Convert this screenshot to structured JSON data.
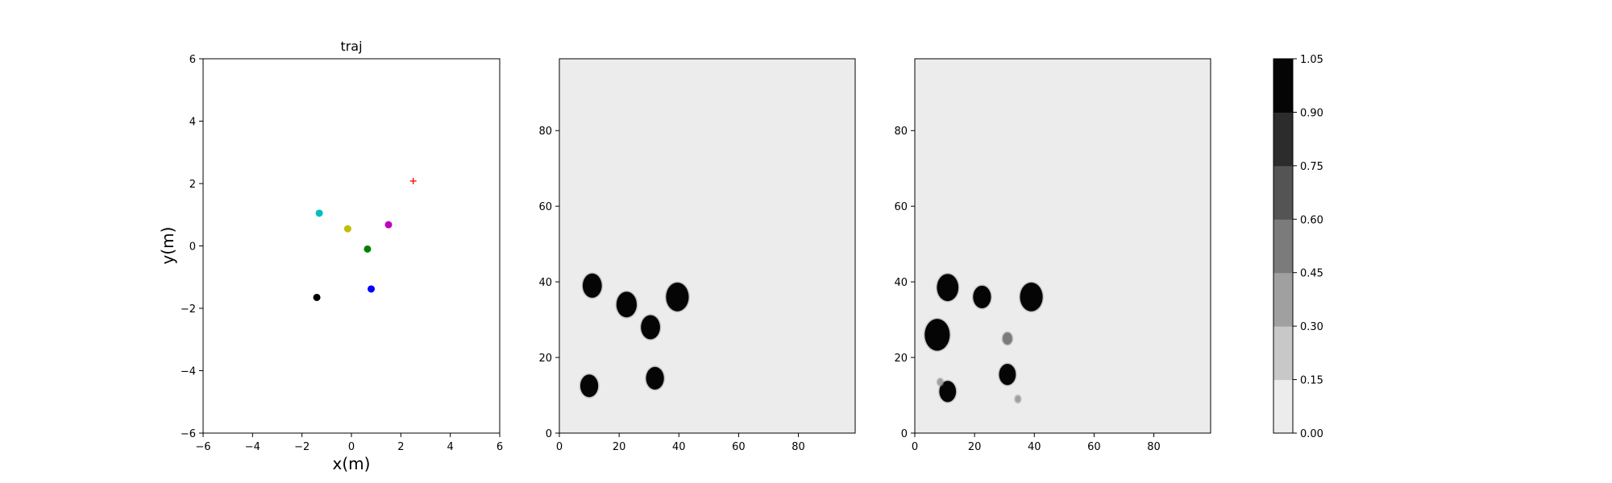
{
  "chart_data": [
    {
      "type": "scatter",
      "title": "traj",
      "xlabel": "x(m)",
      "ylabel": "y(m)",
      "xlim": [
        -6,
        6
      ],
      "ylim": [
        -6,
        6
      ],
      "xticks": [
        "−6",
        "−4",
        "−2",
        "0",
        "2",
        "4",
        "6"
      ],
      "yticks": [
        "−6",
        "−4",
        "−2",
        "0",
        "2",
        "4",
        "6"
      ],
      "grid": false,
      "points": [
        {
          "x": -1.3,
          "y": 1.05,
          "color": "#00bfbf",
          "marker": "circle"
        },
        {
          "x": -0.15,
          "y": 0.55,
          "color": "#bfbf00",
          "marker": "circle"
        },
        {
          "x": 1.5,
          "y": 0.68,
          "color": "#bf00bf",
          "marker": "circle"
        },
        {
          "x": 0.65,
          "y": -0.1,
          "color": "#008000",
          "marker": "circle"
        },
        {
          "x": 0.8,
          "y": -1.38,
          "color": "#0000ff",
          "marker": "circle"
        },
        {
          "x": -1.4,
          "y": -1.65,
          "color": "#000000",
          "marker": "circle"
        },
        {
          "x": 2.5,
          "y": 2.08,
          "color": "#ff0000",
          "marker": "plus"
        }
      ]
    },
    {
      "type": "heatmap",
      "xlim": [
        0,
        99
      ],
      "ylim": [
        0,
        99
      ],
      "xticks": [
        "0",
        "20",
        "40",
        "60",
        "80"
      ],
      "yticks": [
        "0",
        "20",
        "40",
        "60",
        "80"
      ],
      "background_value": 0.05,
      "blobs": [
        {
          "x": 11,
          "y": 39,
          "r": 3.2,
          "value": 1.0
        },
        {
          "x": 22.5,
          "y": 34,
          "r": 3.4,
          "value": 1.0
        },
        {
          "x": 39.5,
          "y": 36,
          "r": 3.8,
          "value": 1.0
        },
        {
          "x": 30.5,
          "y": 28,
          "r": 3.2,
          "value": 1.0
        },
        {
          "x": 10,
          "y": 12.5,
          "r": 3.0,
          "value": 1.0
        },
        {
          "x": 32,
          "y": 14.5,
          "r": 3.0,
          "value": 1.0
        }
      ]
    },
    {
      "type": "heatmap",
      "xlim": [
        0,
        99
      ],
      "ylim": [
        0,
        99
      ],
      "xticks": [
        "0",
        "20",
        "40",
        "60",
        "80"
      ],
      "yticks": [
        "0",
        "20",
        "40",
        "60",
        "80"
      ],
      "background_value": 0.05,
      "blobs": [
        {
          "x": 11,
          "y": 38.5,
          "r": 3.6,
          "value": 1.0
        },
        {
          "x": 22.5,
          "y": 36,
          "r": 3.0,
          "value": 1.0
        },
        {
          "x": 39,
          "y": 36,
          "r": 3.8,
          "value": 1.0
        },
        {
          "x": 7.5,
          "y": 26,
          "r": 4.2,
          "value": 1.0
        },
        {
          "x": 31,
          "y": 15.5,
          "r": 2.8,
          "value": 1.0
        },
        {
          "x": 11,
          "y": 11,
          "r": 2.8,
          "value": 1.0
        },
        {
          "x": 31,
          "y": 25,
          "r": 1.6,
          "value": 0.5
        },
        {
          "x": 34.5,
          "y": 9,
          "r": 0.9,
          "value": 0.3
        },
        {
          "x": 8.5,
          "y": 13.5,
          "r": 0.9,
          "value": 0.3
        }
      ]
    },
    {
      "type": "colorbar",
      "range": [
        0,
        1.05
      ],
      "ticks": [
        "0.00",
        "0.15",
        "0.30",
        "0.45",
        "0.60",
        "0.75",
        "0.90",
        "1.05"
      ],
      "colors": [
        "#ececec",
        "#c8c8c8",
        "#a0a0a0",
        "#7b7b7b",
        "#545454",
        "#2c2c2c",
        "#050505"
      ]
    }
  ]
}
